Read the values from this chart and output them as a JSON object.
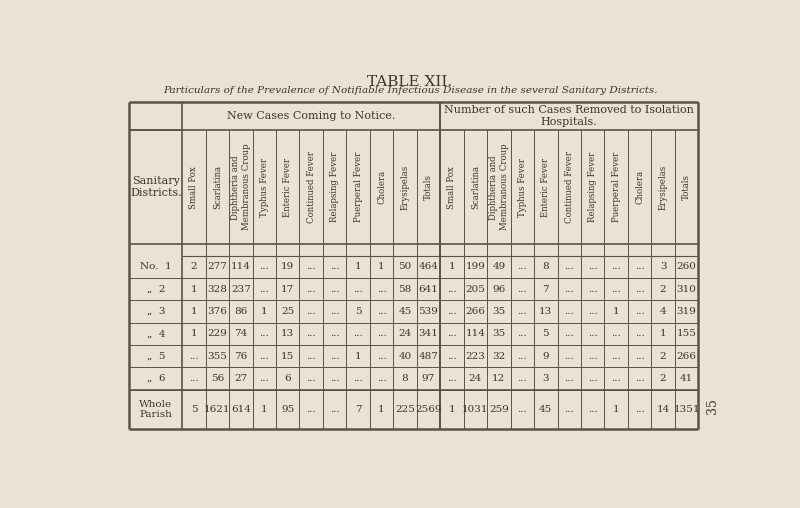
{
  "title": "TABLE XII.",
  "subtitle": "Particulars of the Prevalence of Notifiable Infectious Disease in the several Sanitary Districts.",
  "header1_new": "New Cases Coming to Notice.",
  "header1_removed": "Number of such Cases Removed to Isolation\nHospitals.",
  "col_headers": [
    "Small Pox",
    "Scarlatina",
    "Diphtheria and\nMembranous Croup",
    "Typhus Fever",
    "Enteric Fever",
    "Continued Fever",
    "Relapsing Fever",
    "Puerperal Fever",
    "Cholera",
    "Erysipelas",
    "Totals"
  ],
  "row_labels": [
    "No.  1",
    "„  2",
    "„  3",
    "„  4",
    "„  5",
    "„  6",
    "Whole\nParish"
  ],
  "new_cases": [
    [
      "2",
      "277",
      "114",
      "...",
      "19",
      "...",
      "...",
      "1",
      "1",
      "50",
      "464"
    ],
    [
      "1",
      "328",
      "237",
      "...",
      "17",
      "...",
      "...",
      "...",
      "...",
      "58",
      "641"
    ],
    [
      "1",
      "376",
      "86",
      "1",
      "25",
      "...",
      "...",
      "5",
      "...",
      "45",
      "539"
    ],
    [
      "1",
      "229",
      "74",
      "...",
      "13",
      "...",
      "...",
      "...",
      "...",
      "24",
      "341"
    ],
    [
      "...",
      "355",
      "76",
      "...",
      "15",
      "...",
      "...",
      "1",
      "...",
      "40",
      "487"
    ],
    [
      "...",
      "56",
      "27",
      "...",
      "6",
      "...",
      "...",
      "...",
      "...",
      "8",
      "97"
    ],
    [
      "5",
      "1621",
      "614",
      "1",
      "95",
      "...",
      "...",
      "7",
      "1",
      "225",
      "2569"
    ]
  ],
  "removed_cases": [
    [
      "1",
      "199",
      "49",
      "...",
      "8",
      "...",
      "...",
      "...",
      "...",
      "3",
      "260"
    ],
    [
      "...",
      "205",
      "96",
      "...",
      "7",
      "...",
      "...",
      "...",
      "...",
      "2",
      "310"
    ],
    [
      "...",
      "266",
      "35",
      "...",
      "13",
      "...",
      "...",
      "1",
      "...",
      "4",
      "319"
    ],
    [
      "...",
      "114",
      "35",
      "...",
      "5",
      "...",
      "...",
      "...",
      "...",
      "1",
      "155"
    ],
    [
      "...",
      "223",
      "32",
      "...",
      "9",
      "...",
      "...",
      "...",
      "...",
      "2",
      "266"
    ],
    [
      "...",
      "24",
      "12",
      "...",
      "3",
      "...",
      "...",
      "...",
      "...",
      "2",
      "41"
    ],
    [
      "1",
      "1031",
      "259",
      "...",
      "45",
      "...",
      "...",
      "1",
      "...",
      "14",
      "1351"
    ]
  ],
  "bg_color": "#e8e3d3",
  "text_color": "#3a3530",
  "line_color": "#5a5248"
}
